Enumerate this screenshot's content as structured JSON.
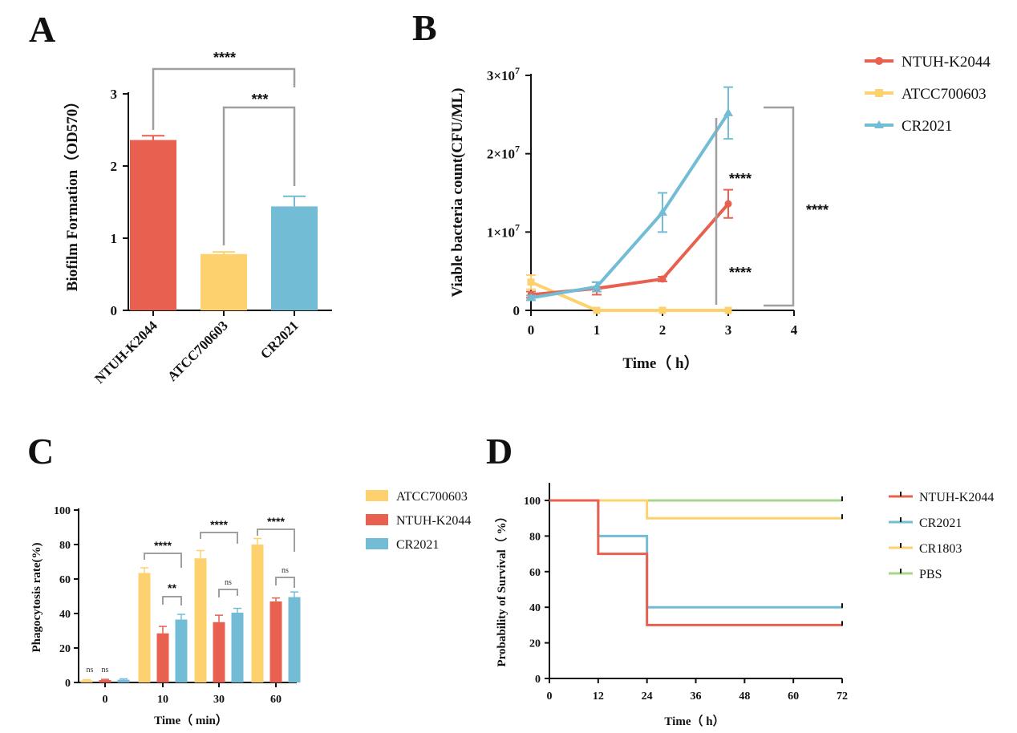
{
  "colors": {
    "red": "#E8604F",
    "yellow": "#FDD26E",
    "blue": "#73BCD6",
    "green": "#A8D58A",
    "bracket": "#A0A0A0"
  },
  "chart_data": [
    {
      "panel": "A",
      "type": "bar",
      "ylabel": "Biofilm Formation（OD570）",
      "ylim": [
        0,
        3
      ],
      "yticks": [
        "0",
        "1",
        "2",
        "3"
      ],
      "categories": [
        "NTUH-K2044",
        "ATCC700603",
        "CR2021"
      ],
      "values": [
        2.36,
        0.78,
        1.44
      ],
      "errors": [
        0.06,
        0.03,
        0.14
      ],
      "significance": [
        {
          "between": [
            "NTUH-K2044",
            "CR2021"
          ],
          "label": "****"
        },
        {
          "between": [
            "ATCC700603",
            "CR2021"
          ],
          "label": "***"
        }
      ]
    },
    {
      "panel": "B",
      "type": "line",
      "xlabel": "Time（ h）",
      "ylabel": "Viable bacteria count(CFU/ML)",
      "xlim": [
        0,
        4
      ],
      "xticks": [
        "0",
        "1",
        "2",
        "3",
        "4"
      ],
      "ylim": [
        0,
        30000000
      ],
      "yticks": [
        {
          "base": "0",
          "exp": ""
        },
        {
          "base": "1×10",
          "exp": "7"
        },
        {
          "base": "2×10",
          "exp": "7"
        },
        {
          "base": "3×10",
          "exp": "7"
        }
      ],
      "x": [
        0,
        1,
        2,
        3
      ],
      "series": [
        {
          "name": "NTUH-K2044",
          "values": [
            2000000,
            2800000,
            4000000,
            13600000
          ],
          "errors": [
            400000,
            800000,
            300000,
            1800000
          ]
        },
        {
          "name": "ATCC700603",
          "values": [
            3600000,
            0,
            0,
            0
          ],
          "errors": [
            900000,
            0,
            0,
            0
          ]
        },
        {
          "name": "CR2021",
          "values": [
            1600000,
            3000000,
            12500000,
            25200000
          ],
          "errors": [
            300000,
            600000,
            2500000,
            3300000
          ]
        }
      ],
      "significance": [
        "****",
        "****",
        "****"
      ]
    },
    {
      "panel": "C",
      "type": "bar",
      "xlabel": "Time（ min）",
      "ylabel": "Phagocytosis rate(%)",
      "ylim": [
        0,
        100
      ],
      "yticks": [
        "0",
        "20",
        "40",
        "60",
        "80",
        "100"
      ],
      "categories": [
        "0",
        "10",
        "30",
        "60"
      ],
      "series": [
        {
          "name": "ATCC700603",
          "values": [
            1.2,
            63.5,
            72,
            80
          ],
          "errors": [
            0.4,
            3,
            4.5,
            3.5
          ]
        },
        {
          "name": "NTUH-K2044",
          "values": [
            1.4,
            28.5,
            35,
            47
          ],
          "errors": [
            0.4,
            4,
            4,
            2
          ]
        },
        {
          "name": "CR2021",
          "values": [
            1.6,
            36.5,
            40.5,
            49.5
          ],
          "errors": [
            0.5,
            3,
            2.5,
            3
          ]
        }
      ],
      "significance": {
        "group_0": [
          "ns",
          "ns"
        ],
        "group_10": [
          "****",
          "**"
        ],
        "group_30": [
          "****",
          "ns"
        ],
        "group_60": [
          "****",
          "ns"
        ]
      }
    },
    {
      "panel": "D",
      "type": "line",
      "xlabel": "Time（ h）",
      "ylabel": "Probability of Survival（ %）",
      "xlim": [
        0,
        72
      ],
      "xticks": [
        "0",
        "12",
        "24",
        "36",
        "48",
        "60",
        "72"
      ],
      "ylim": [
        0,
        100
      ],
      "yticks": [
        "0",
        "20",
        "40",
        "60",
        "80",
        "100"
      ],
      "series": [
        {
          "name": "NTUH-K2044",
          "steps": [
            [
              0,
              100
            ],
            [
              12,
              70
            ],
            [
              24,
              30
            ],
            [
              72,
              30
            ]
          ]
        },
        {
          "name": "CR2021",
          "steps": [
            [
              0,
              100
            ],
            [
              12,
              80
            ],
            [
              24,
              40
            ],
            [
              72,
              40
            ]
          ]
        },
        {
          "name": "CR1803",
          "steps": [
            [
              0,
              100
            ],
            [
              24,
              90
            ],
            [
              72,
              90
            ]
          ]
        },
        {
          "name": "PBS",
          "steps": [
            [
              0,
              100
            ],
            [
              72,
              100
            ]
          ]
        }
      ]
    }
  ]
}
